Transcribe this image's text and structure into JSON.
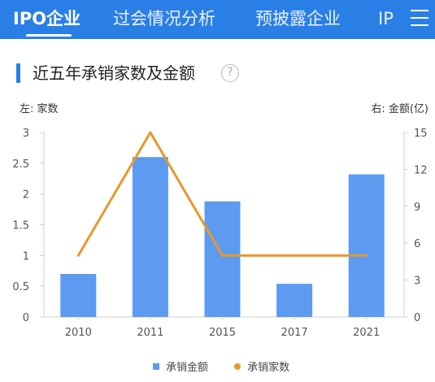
{
  "nav": {
    "tabs": [
      {
        "label": "IPO企业",
        "active": true
      },
      {
        "label": "过会情况分析",
        "active": false
      },
      {
        "label": "预披露企业",
        "active": false
      },
      {
        "label": "IP",
        "active": false
      }
    ],
    "menu_icon": "menu-icon"
  },
  "section": {
    "title": "近五年承销家数及金额",
    "help_icon": "?"
  },
  "axes": {
    "left_unit": "左: 家数",
    "right_unit": "右: 金额(亿)"
  },
  "colors": {
    "primary": "#2a7fe6",
    "bar": "#5d9bf1",
    "line": "#e8982c"
  },
  "chart_data": {
    "type": "bar",
    "categories": [
      "2010",
      "2011",
      "2015",
      "2017",
      "2021"
    ],
    "series": [
      {
        "name": "承销金额",
        "type": "bar",
        "axis": "right",
        "values": [
          3.5,
          13,
          9.4,
          2.7,
          11.6
        ]
      },
      {
        "name": "承销家数",
        "type": "line",
        "axis": "left",
        "values": [
          1,
          3,
          1,
          1,
          1
        ]
      }
    ],
    "left_axis": {
      "min": 0,
      "max": 3,
      "ticks": [
        "0",
        "0.5",
        "1",
        "1.5",
        "2",
        "2.5",
        "3"
      ]
    },
    "right_axis": {
      "min": 0,
      "max": 15,
      "ticks": [
        "0",
        "3",
        "6",
        "9",
        "12",
        "15"
      ]
    },
    "legend_position": "bottom-center",
    "grid": false
  }
}
